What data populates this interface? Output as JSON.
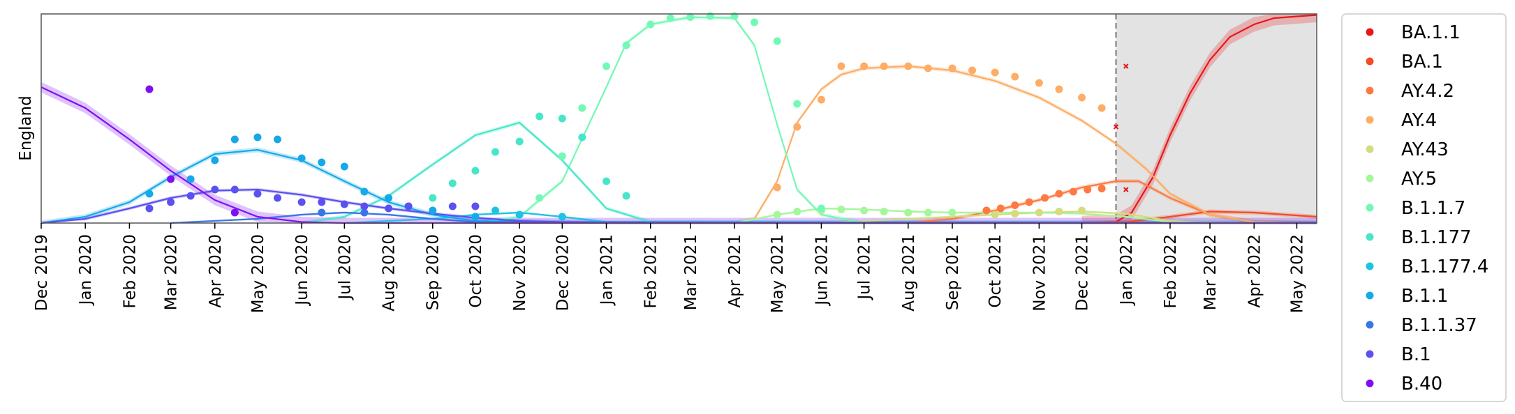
{
  "chart_data": {
    "type": "line",
    "ylabel": "England",
    "xlabel": "",
    "x_ticks": [
      "Dec 2019",
      "Jan 2020",
      "Feb 2020",
      "Mar 2020",
      "Apr 2020",
      "May 2020",
      "Jun 2020",
      "Jul 2020",
      "Aug 2020",
      "Sep 2020",
      "Oct 2020",
      "Nov 2020",
      "Dec 2020",
      "Jan 2021",
      "Feb 2021",
      "Mar 2021",
      "Apr 2021",
      "May 2021",
      "Jun 2021",
      "Jul 2021",
      "Aug 2021",
      "Sep 2021",
      "Oct 2021",
      "Nov 2021",
      "Dec 2021",
      "Jan 2022",
      "Feb 2022",
      "Mar 2022",
      "Apr 2022",
      "May 2022"
    ],
    "xlim": [
      "2019-12-01",
      "2022-05-15"
    ],
    "ylim": [
      0,
      1
    ],
    "forecast_start": "2021-12-25",
    "grid": false,
    "legend_placement": "outside-right",
    "series": [
      {
        "name": "BA.1.1",
        "color": "#e8171a",
        "curve": [
          [
            "2021-12-01",
            0
          ],
          [
            "2021-12-25",
            0.005
          ],
          [
            "2022-01-05",
            0.05
          ],
          [
            "2022-01-20",
            0.22
          ],
          [
            "2022-02-01",
            0.42
          ],
          [
            "2022-02-15",
            0.62
          ],
          [
            "2022-03-01",
            0.78
          ],
          [
            "2022-03-15",
            0.89
          ],
          [
            "2022-04-01",
            0.95
          ],
          [
            "2022-04-15",
            0.98
          ],
          [
            "2022-05-15",
            0.995
          ]
        ],
        "band": 0.035,
        "points": [
          [
            "2021-12-25",
            0.46
          ],
          [
            "2022-01-01",
            0.75
          ],
          [
            "2022-01-01",
            0.16
          ]
        ]
      },
      {
        "name": "BA.1",
        "color": "#f44a26",
        "curve": [
          [
            "2021-12-01",
            0
          ],
          [
            "2022-01-01",
            0.005
          ],
          [
            "2022-02-01",
            0.03
          ],
          [
            "2022-03-01",
            0.055
          ],
          [
            "2022-04-01",
            0.05
          ],
          [
            "2022-05-15",
            0.03
          ]
        ],
        "band": 0.01,
        "points": []
      },
      {
        "name": "AY.4.2",
        "color": "#fd7a42",
        "curve": [
          [
            "2021-08-01",
            0
          ],
          [
            "2021-09-01",
            0.02
          ],
          [
            "2021-10-01",
            0.06
          ],
          [
            "2021-11-01",
            0.11
          ],
          [
            "2021-12-01",
            0.17
          ],
          [
            "2021-12-25",
            0.2
          ],
          [
            "2022-01-10",
            0.2
          ],
          [
            "2022-02-01",
            0.12
          ],
          [
            "2022-03-01",
            0.04
          ],
          [
            "2022-04-01",
            0.005
          ],
          [
            "2022-05-15",
            0
          ]
        ],
        "band": 0.01,
        "points": [
          [
            "2021-09-25",
            0.06
          ],
          [
            "2021-10-05",
            0.07
          ],
          [
            "2021-10-15",
            0.085
          ],
          [
            "2021-10-25",
            0.1
          ],
          [
            "2021-11-05",
            0.12
          ],
          [
            "2021-11-15",
            0.14
          ],
          [
            "2021-11-25",
            0.15
          ],
          [
            "2021-12-05",
            0.16
          ],
          [
            "2021-12-15",
            0.165
          ]
        ]
      },
      {
        "name": "AY.4",
        "color": "#fdad65",
        "curve": [
          [
            "2021-04-01",
            0
          ],
          [
            "2021-04-15",
            0.02
          ],
          [
            "2021-05-01",
            0.2
          ],
          [
            "2021-05-15",
            0.48
          ],
          [
            "2021-06-01",
            0.64
          ],
          [
            "2021-06-15",
            0.71
          ],
          [
            "2021-07-01",
            0.74
          ],
          [
            "2021-08-01",
            0.75
          ],
          [
            "2021-09-01",
            0.73
          ],
          [
            "2021-10-01",
            0.68
          ],
          [
            "2021-11-01",
            0.6
          ],
          [
            "2021-12-01",
            0.49
          ],
          [
            "2021-12-25",
            0.38
          ],
          [
            "2022-01-15",
            0.26
          ],
          [
            "2022-02-01",
            0.14
          ],
          [
            "2022-03-01",
            0.04
          ],
          [
            "2022-04-01",
            0.005
          ],
          [
            "2022-05-15",
            0
          ]
        ],
        "band": 0.01,
        "points": [
          [
            "2021-05-01",
            0.17
          ],
          [
            "2021-05-15",
            0.46
          ],
          [
            "2021-06-01",
            0.59
          ],
          [
            "2021-06-15",
            0.75
          ],
          [
            "2021-07-01",
            0.75
          ],
          [
            "2021-07-15",
            0.75
          ],
          [
            "2021-08-01",
            0.75
          ],
          [
            "2021-08-15",
            0.74
          ],
          [
            "2021-09-01",
            0.74
          ],
          [
            "2021-09-15",
            0.73
          ],
          [
            "2021-10-01",
            0.72
          ],
          [
            "2021-10-15",
            0.7
          ],
          [
            "2021-11-01",
            0.67
          ],
          [
            "2021-11-15",
            0.64
          ],
          [
            "2021-12-01",
            0.6
          ],
          [
            "2021-12-15",
            0.55
          ]
        ]
      },
      {
        "name": "AY.43",
        "color": "#d4dc7f",
        "curve": [
          [
            "2021-06-01",
            0
          ],
          [
            "2021-08-01",
            0.02
          ],
          [
            "2021-10-01",
            0.04
          ],
          [
            "2021-11-01",
            0.05
          ],
          [
            "2021-12-01",
            0.055
          ],
          [
            "2022-01-01",
            0.045
          ],
          [
            "2022-02-01",
            0.01
          ],
          [
            "2022-03-01",
            0
          ],
          [
            "2022-05-15",
            0
          ]
        ],
        "band": 0.006,
        "points": [
          [
            "2021-10-01",
            0.04
          ],
          [
            "2021-10-15",
            0.045
          ],
          [
            "2021-11-01",
            0.05
          ],
          [
            "2021-11-15",
            0.055
          ],
          [
            "2021-12-01",
            0.06
          ]
        ]
      },
      {
        "name": "AY.5",
        "color": "#a4f79a",
        "curve": [
          [
            "2021-04-01",
            0
          ],
          [
            "2021-05-01",
            0.04
          ],
          [
            "2021-06-01",
            0.07
          ],
          [
            "2021-07-01",
            0.065
          ],
          [
            "2021-08-01",
            0.055
          ],
          [
            "2021-09-01",
            0.05
          ],
          [
            "2021-10-01",
            0.05
          ],
          [
            "2021-11-01",
            0.05
          ],
          [
            "2021-12-01",
            0.045
          ],
          [
            "2022-01-01",
            0.03
          ],
          [
            "2022-02-01",
            0.005
          ],
          [
            "2022-05-15",
            0
          ]
        ],
        "band": 0.005,
        "points": [
          [
            "2021-05-01",
            0.04
          ],
          [
            "2021-05-15",
            0.055
          ],
          [
            "2021-06-01",
            0.06
          ],
          [
            "2021-06-15",
            0.065
          ],
          [
            "2021-07-01",
            0.06
          ],
          [
            "2021-07-15",
            0.055
          ],
          [
            "2021-08-01",
            0.05
          ],
          [
            "2021-08-15",
            0.05
          ],
          [
            "2021-09-01",
            0.05
          ]
        ]
      },
      {
        "name": "B.1.1.7",
        "color": "#74f9b5",
        "curve": [
          [
            "2020-10-01",
            0
          ],
          [
            "2020-11-01",
            0.03
          ],
          [
            "2020-12-01",
            0.2
          ],
          [
            "2021-01-01",
            0.65
          ],
          [
            "2021-01-15",
            0.86
          ],
          [
            "2021-02-01",
            0.95
          ],
          [
            "2021-03-01",
            0.985
          ],
          [
            "2021-04-01",
            0.98
          ],
          [
            "2021-04-15",
            0.85
          ],
          [
            "2021-05-01",
            0.47
          ],
          [
            "2021-05-15",
            0.16
          ],
          [
            "2021-06-01",
            0.04
          ],
          [
            "2021-07-01",
            0
          ],
          [
            "2022-05-15",
            0
          ]
        ],
        "band": 0.01,
        "points": [
          [
            "2020-11-15",
            0.12
          ],
          [
            "2020-12-01",
            0.32
          ],
          [
            "2020-12-15",
            0.55
          ],
          [
            "2021-01-01",
            0.75
          ],
          [
            "2021-01-15",
            0.85
          ],
          [
            "2021-02-01",
            0.95
          ],
          [
            "2021-02-15",
            0.98
          ],
          [
            "2021-03-01",
            0.985
          ],
          [
            "2021-03-15",
            0.99
          ],
          [
            "2021-04-01",
            0.99
          ],
          [
            "2021-04-15",
            0.96
          ],
          [
            "2021-05-01",
            0.87
          ],
          [
            "2021-05-15",
            0.57
          ],
          [
            "2021-06-01",
            0.07
          ]
        ]
      },
      {
        "name": "B.1.177",
        "color": "#48e6c9",
        "curve": [
          [
            "2020-06-01",
            0
          ],
          [
            "2020-07-01",
            0.03
          ],
          [
            "2020-08-01",
            0.13
          ],
          [
            "2020-09-01",
            0.28
          ],
          [
            "2020-10-01",
            0.42
          ],
          [
            "2020-11-01",
            0.48
          ],
          [
            "2020-12-01",
            0.3
          ],
          [
            "2021-01-01",
            0.07
          ],
          [
            "2021-02-01",
            0.005
          ],
          [
            "2022-05-15",
            0
          ]
        ],
        "band": 0.01,
        "points": [
          [
            "2020-09-01",
            0.12
          ],
          [
            "2020-09-15",
            0.19
          ],
          [
            "2020-10-01",
            0.25
          ],
          [
            "2020-10-15",
            0.34
          ],
          [
            "2020-11-01",
            0.39
          ],
          [
            "2020-11-15",
            0.51
          ],
          [
            "2020-12-01",
            0.5
          ],
          [
            "2020-12-15",
            0.41
          ],
          [
            "2021-01-01",
            0.2
          ],
          [
            "2021-01-15",
            0.13
          ]
        ]
      },
      {
        "name": "B.1.177.4",
        "color": "#1cc4e2",
        "curve": [
          [
            "2020-07-01",
            0
          ],
          [
            "2020-09-01",
            0.02
          ],
          [
            "2020-10-01",
            0.04
          ],
          [
            "2020-11-01",
            0.05
          ],
          [
            "2020-12-01",
            0.03
          ],
          [
            "2021-01-01",
            0.005
          ],
          [
            "2022-05-15",
            0
          ]
        ],
        "band": 0.005,
        "points": [
          [
            "2020-10-15",
            0.06
          ],
          [
            "2020-11-01",
            0.04
          ],
          [
            "2020-12-01",
            0.03
          ]
        ]
      },
      {
        "name": "B.1.1",
        "color": "#16a9e9",
        "curve": [
          [
            "2019-12-01",
            0
          ],
          [
            "2020-01-01",
            0.03
          ],
          [
            "2020-02-01",
            0.1
          ],
          [
            "2020-03-01",
            0.22
          ],
          [
            "2020-04-01",
            0.33
          ],
          [
            "2020-05-01",
            0.35
          ],
          [
            "2020-06-01",
            0.3
          ],
          [
            "2020-07-01",
            0.2
          ],
          [
            "2020-08-01",
            0.1
          ],
          [
            "2020-09-01",
            0.04
          ],
          [
            "2020-10-01",
            0.01
          ],
          [
            "2021-01-01",
            0
          ],
          [
            "2022-05-15",
            0
          ]
        ],
        "band": 0.012,
        "points": [
          [
            "2020-02-15",
            0.14
          ],
          [
            "2020-03-15",
            0.21
          ],
          [
            "2020-04-01",
            0.3
          ],
          [
            "2020-04-15",
            0.4
          ],
          [
            "2020-05-01",
            0.41
          ],
          [
            "2020-05-15",
            0.4
          ],
          [
            "2020-06-01",
            0.31
          ],
          [
            "2020-06-15",
            0.29
          ],
          [
            "2020-07-01",
            0.27
          ],
          [
            "2020-07-15",
            0.15
          ],
          [
            "2020-08-01",
            0.12
          ],
          [
            "2020-08-15",
            0.08
          ],
          [
            "2020-09-01",
            0.06
          ],
          [
            "2020-10-01",
            0.03
          ]
        ]
      },
      {
        "name": "B.1.1.37",
        "color": "#3a75e8",
        "curve": [
          [
            "2020-03-01",
            0
          ],
          [
            "2020-05-01",
            0.02
          ],
          [
            "2020-06-01",
            0.04
          ],
          [
            "2020-07-01",
            0.05
          ],
          [
            "2020-08-01",
            0.04
          ],
          [
            "2020-09-01",
            0.02
          ],
          [
            "2020-10-01",
            0.005
          ],
          [
            "2022-05-15",
            0
          ]
        ],
        "band": 0.005,
        "points": [
          [
            "2020-06-15",
            0.05
          ],
          [
            "2020-07-15",
            0.05
          ]
        ]
      },
      {
        "name": "B.1",
        "color": "#5b51f0",
        "curve": [
          [
            "2019-12-01",
            0
          ],
          [
            "2020-01-01",
            0.02
          ],
          [
            "2020-02-01",
            0.07
          ],
          [
            "2020-03-01",
            0.12
          ],
          [
            "2020-04-01",
            0.155
          ],
          [
            "2020-05-01",
            0.16
          ],
          [
            "2020-06-01",
            0.135
          ],
          [
            "2020-07-01",
            0.1
          ],
          [
            "2020-08-01",
            0.07
          ],
          [
            "2020-09-01",
            0.045
          ],
          [
            "2020-10-01",
            0.025
          ],
          [
            "2020-11-01",
            0.01
          ],
          [
            "2021-01-01",
            0
          ],
          [
            "2022-05-15",
            0
          ]
        ],
        "band": 0.008,
        "points": [
          [
            "2020-02-15",
            0.07
          ],
          [
            "2020-03-01",
            0.1
          ],
          [
            "2020-03-15",
            0.13
          ],
          [
            "2020-04-01",
            0.16
          ],
          [
            "2020-04-15",
            0.16
          ],
          [
            "2020-05-01",
            0.14
          ],
          [
            "2020-05-15",
            0.12
          ],
          [
            "2020-06-01",
            0.1
          ],
          [
            "2020-06-15",
            0.1
          ],
          [
            "2020-07-01",
            0.09
          ],
          [
            "2020-07-15",
            0.08
          ],
          [
            "2020-08-01",
            0.07
          ],
          [
            "2020-08-15",
            0.08
          ],
          [
            "2020-09-15",
            0.08
          ],
          [
            "2020-10-01",
            0.08
          ]
        ]
      },
      {
        "name": "B.40",
        "color": "#7e11f4",
        "curve": [
          [
            "2019-12-01",
            0.65
          ],
          [
            "2020-01-01",
            0.55
          ],
          [
            "2020-02-01",
            0.4
          ],
          [
            "2020-03-01",
            0.25
          ],
          [
            "2020-04-01",
            0.11
          ],
          [
            "2020-05-01",
            0.03
          ],
          [
            "2020-06-01",
            0.005
          ],
          [
            "2020-07-01",
            0
          ],
          [
            "2022-05-15",
            0
          ]
        ],
        "band": 0.025,
        "points": [
          [
            "2020-02-15",
            0.64
          ],
          [
            "2020-03-01",
            0.21
          ],
          [
            "2020-04-15",
            0.05
          ]
        ]
      }
    ]
  }
}
